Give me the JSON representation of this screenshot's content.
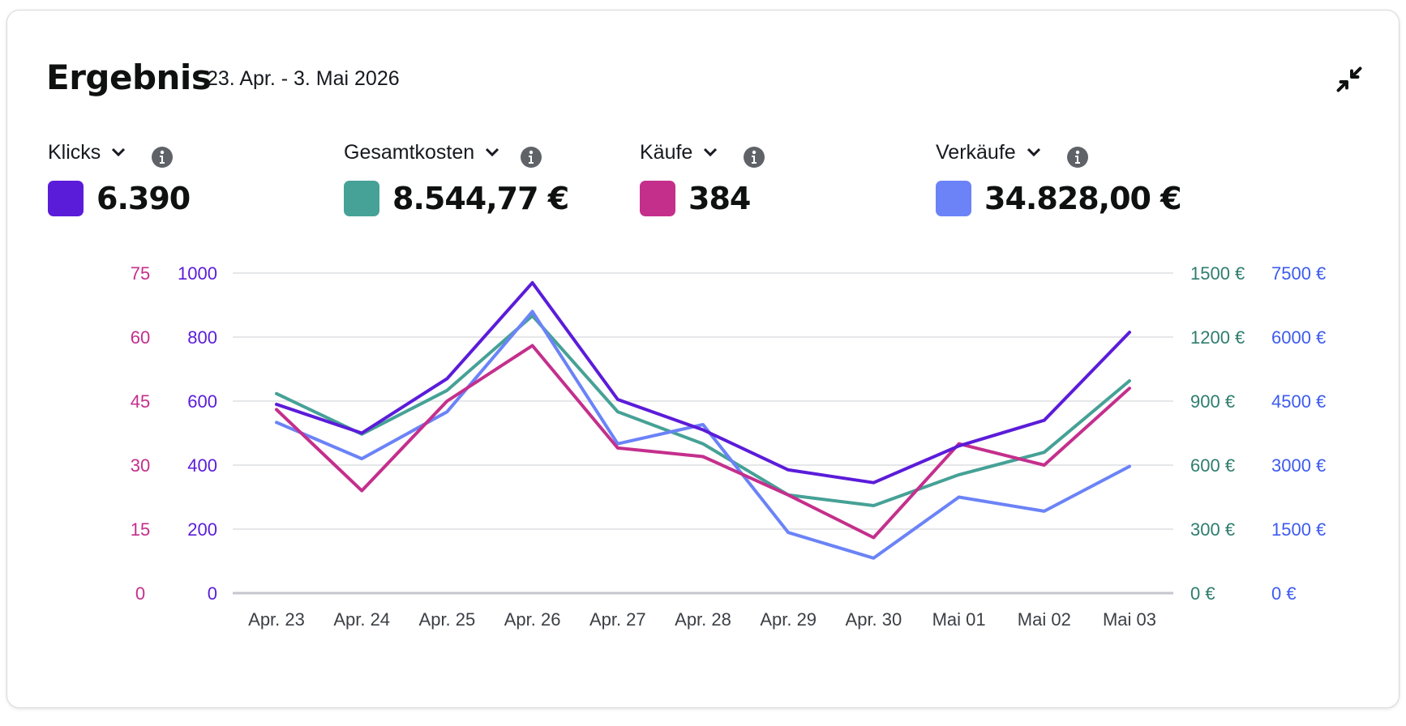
{
  "header": {
    "title": "Ergebnis",
    "date_range": "23. Apr. - 3. Mai 2026"
  },
  "metrics": [
    {
      "label": "Klicks",
      "value": "6.390",
      "color": "#5b1cd9"
    },
    {
      "label": "Gesamtkosten",
      "value": "8.544,77 €",
      "color": "#46a196"
    },
    {
      "label": "Käufe",
      "value": "384",
      "color": "#c42f8c"
    },
    {
      "label": "Verkäufe",
      "value": "34.828,00 €",
      "color": "#6b83f7"
    }
  ],
  "chart_data": {
    "type": "line",
    "x": [
      "Apr. 23",
      "Apr. 24",
      "Apr. 25",
      "Apr. 26",
      "Apr. 27",
      "Apr. 28",
      "Apr. 29",
      "Apr. 30",
      "Mai 01",
      "Mai 02",
      "Mai 03"
    ],
    "series": [
      {
        "name": "Klicks",
        "color": "#5b1cd9",
        "axis": "klicks",
        "values": [
          590,
          500,
          670,
          970,
          605,
          510,
          385,
          345,
          460,
          540,
          815
        ]
      },
      {
        "name": "Gesamtkosten",
        "color": "#46a196",
        "axis": "kosten",
        "values": [
          935,
          745,
          950,
          1300,
          850,
          700,
          460,
          410,
          555,
          660,
          995
        ]
      },
      {
        "name": "Käufe",
        "color": "#c42f8c",
        "axis": "kaeufe",
        "values": [
          43,
          24,
          45,
          58,
          34,
          32,
          23,
          13,
          35,
          30,
          48
        ]
      },
      {
        "name": "Verkäufe",
        "color": "#6b83f7",
        "axis": "verkaeufe",
        "values": [
          4000,
          3150,
          4250,
          6600,
          3500,
          3950,
          1420,
          820,
          2250,
          1920,
          2970
        ]
      }
    ],
    "axes": {
      "kaeufe": {
        "side": "left",
        "color": "#c42f8c",
        "ticks": [
          "0",
          "15",
          "30",
          "45",
          "60",
          "75"
        ],
        "range": [
          0,
          75
        ]
      },
      "klicks": {
        "side": "left",
        "color": "#5b1cd9",
        "ticks": [
          "0",
          "200",
          "400",
          "600",
          "800",
          "1000"
        ],
        "range": [
          0,
          1000
        ]
      },
      "kosten": {
        "side": "right",
        "color": "#2e7d6e",
        "ticks": [
          "0 €",
          "300 €",
          "600 €",
          "900 €",
          "1200 €",
          "1500 €"
        ],
        "range": [
          0,
          1500
        ]
      },
      "verkaeufe": {
        "side": "right",
        "color": "#3d5bf0",
        "ticks": [
          "0 €",
          "1500 €",
          "3000 €",
          "4500 €",
          "6000 €",
          "7500 €"
        ],
        "range": [
          0,
          7500
        ]
      }
    },
    "grid": true,
    "legend": "none"
  }
}
